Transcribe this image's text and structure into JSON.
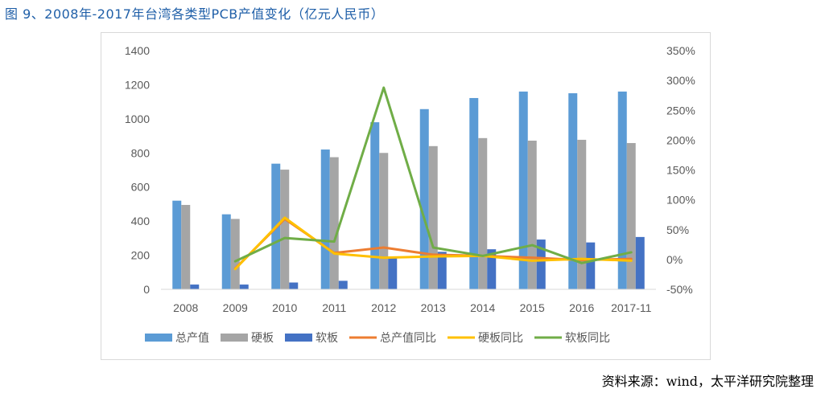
{
  "figure": {
    "title": "图 9、2008年-2017年台湾各类型PCB产值变化（亿元人民币）",
    "source": "资料来源：wind，太平洋研究院整理"
  },
  "chart_data": {
    "type": "bar",
    "categories": [
      "2008",
      "2009",
      "2010",
      "2011",
      "2012",
      "2013",
      "2014",
      "2015",
      "2016",
      "2017-11"
    ],
    "series": [
      {
        "name": "总产值",
        "kind": "bar",
        "axis": "left",
        "color": "#5b9bd5",
        "values": [
          520,
          440,
          737,
          820,
          980,
          1057,
          1122,
          1160,
          1150,
          1160
        ]
      },
      {
        "name": "硬板",
        "kind": "bar",
        "axis": "left",
        "color": "#a5a5a5",
        "values": [
          495,
          413,
          702,
          775,
          800,
          840,
          887,
          872,
          877,
          858
        ]
      },
      {
        "name": "软板",
        "kind": "bar",
        "axis": "left",
        "color": "#4472c4",
        "values": [
          28,
          28,
          40,
          50,
          185,
          220,
          235,
          292,
          275,
          307
        ]
      },
      {
        "name": "总产值同比",
        "kind": "line",
        "axis": "right",
        "color": "#ed7d31",
        "values": [
          null,
          -0.15,
          0.68,
          0.11,
          0.2,
          0.08,
          0.06,
          0.03,
          -0.01,
          0.01
        ]
      },
      {
        "name": "硬板同比",
        "kind": "line",
        "axis": "right",
        "color": "#ffc000",
        "values": [
          null,
          -0.16,
          0.7,
          0.1,
          0.03,
          0.05,
          0.06,
          -0.02,
          0.01,
          -0.02
        ]
      },
      {
        "name": "软板同比",
        "kind": "line",
        "axis": "right",
        "color": "#70ad47",
        "values": [
          null,
          -0.03,
          0.36,
          0.3,
          2.88,
          0.2,
          0.06,
          0.24,
          -0.06,
          0.12
        ]
      }
    ],
    "y_left": {
      "ylim": [
        0,
        1400
      ],
      "ticks": [
        "0",
        "200",
        "400",
        "600",
        "800",
        "1000",
        "1200",
        "1400"
      ]
    },
    "y_right": {
      "ylim": [
        -0.5,
        3.5
      ],
      "ticks": [
        "-50%",
        "0%",
        "50%",
        "100%",
        "150%",
        "200%",
        "250%",
        "300%",
        "350%"
      ]
    },
    "grid": false,
    "legend_position": "bottom"
  }
}
